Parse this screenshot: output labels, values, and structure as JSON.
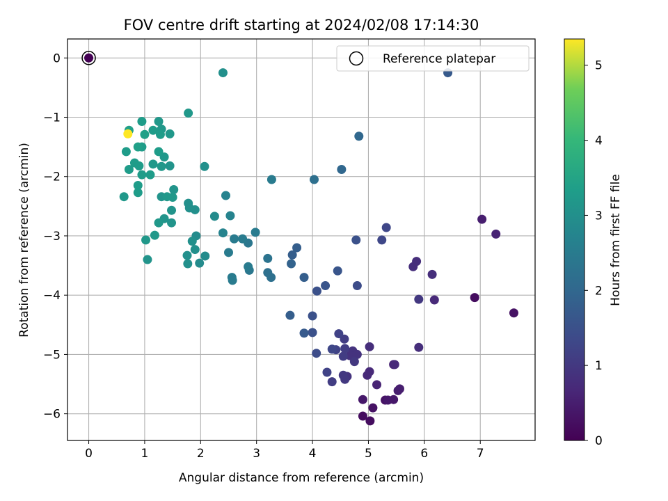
{
  "chart_data": {
    "type": "scatter",
    "title": "FOV centre drift starting at 2024/02/08 17:14:30",
    "xlabel": "Angular distance from reference (arcmin)",
    "ylabel": "Rotation from reference (arcmin)",
    "xlim": [
      -0.38,
      7.98
    ],
    "ylim": [
      -6.45,
      0.32
    ],
    "xticks": [
      "0",
      "1",
      "2",
      "3",
      "4",
      "5",
      "6",
      "7"
    ],
    "yticks": [
      "0",
      "−1",
      "−2",
      "−3",
      "−4",
      "−5",
      "−6"
    ],
    "grid": true,
    "legend": {
      "position": "top-right",
      "entries": [
        "Reference platepar"
      ]
    },
    "colorbar": {
      "label": "Hours from first FF file",
      "range": [
        0,
        5.35
      ],
      "ticks": [
        "0",
        "1",
        "2",
        "3",
        "4",
        "5"
      ],
      "colormap": "viridis"
    },
    "reference_point": {
      "x": 0,
      "y": 0
    },
    "points": [
      [
        2.4,
        -0.25,
        3.0
      ],
      [
        1.78,
        -0.93,
        3.2
      ],
      [
        6.42,
        -0.25,
        1.7
      ],
      [
        4.83,
        -1.32,
        2.0
      ],
      [
        0.72,
        -1.22,
        3.4
      ],
      [
        0.7,
        -1.28,
        5.35
      ],
      [
        0.95,
        -1.07,
        3.3
      ],
      [
        1.25,
        -1.07,
        3.2
      ],
      [
        1.3,
        -1.2,
        3.2
      ],
      [
        1.15,
        -1.22,
        3.3
      ],
      [
        1.0,
        -1.29,
        3.4
      ],
      [
        1.45,
        -1.28,
        3.2
      ],
      [
        1.28,
        -1.29,
        3.3
      ],
      [
        0.88,
        -1.5,
        3.4
      ],
      [
        0.95,
        -1.5,
        3.3
      ],
      [
        0.67,
        -1.58,
        3.3
      ],
      [
        1.25,
        -1.58,
        3.3
      ],
      [
        1.35,
        -1.67,
        3.2
      ],
      [
        0.82,
        -1.77,
        3.3
      ],
      [
        1.15,
        -1.79,
        3.2
      ],
      [
        1.3,
        -1.83,
        3.2
      ],
      [
        1.45,
        -1.82,
        3.1
      ],
      [
        0.9,
        -1.82,
        3.3
      ],
      [
        0.72,
        -1.88,
        3.3
      ],
      [
        0.95,
        -1.97,
        3.3
      ],
      [
        1.1,
        -1.97,
        3.3
      ],
      [
        2.07,
        -1.83,
        3.0
      ],
      [
        3.27,
        -2.05,
        2.5
      ],
      [
        4.03,
        -2.05,
        2.2
      ],
      [
        4.52,
        -1.88,
        2.0
      ],
      [
        0.88,
        -2.15,
        3.3
      ],
      [
        0.88,
        -2.27,
        3.3
      ],
      [
        0.63,
        -2.34,
        3.2
      ],
      [
        1.3,
        -2.34,
        3.1
      ],
      [
        1.4,
        -2.34,
        3.2
      ],
      [
        1.52,
        -2.22,
        3.1
      ],
      [
        1.5,
        -2.35,
        3.2
      ],
      [
        2.45,
        -2.32,
        2.7
      ],
      [
        1.78,
        -2.45,
        3.0
      ],
      [
        1.8,
        -2.53,
        3.0
      ],
      [
        1.9,
        -2.56,
        3.0
      ],
      [
        1.48,
        -2.57,
        3.1
      ],
      [
        2.25,
        -2.67,
        2.9
      ],
      [
        2.53,
        -2.66,
        2.7
      ],
      [
        1.25,
        -2.78,
        3.2
      ],
      [
        1.35,
        -2.71,
        3.1
      ],
      [
        1.48,
        -2.78,
        3.1
      ],
      [
        5.32,
        -2.86,
        1.3
      ],
      [
        2.4,
        -2.95,
        2.7
      ],
      [
        2.98,
        -2.94,
        2.5
      ],
      [
        1.18,
        -2.99,
        3.2
      ],
      [
        1.92,
        -3.0,
        2.9
      ],
      [
        1.02,
        -3.07,
        3.2
      ],
      [
        1.85,
        -3.09,
        3.0
      ],
      [
        2.6,
        -3.05,
        2.5
      ],
      [
        2.75,
        -3.05,
        2.5
      ],
      [
        2.85,
        -3.12,
        2.4
      ],
      [
        4.78,
        -3.07,
        1.5
      ],
      [
        5.24,
        -3.07,
        1.3
      ],
      [
        3.72,
        -3.2,
        1.8
      ],
      [
        1.9,
        -3.23,
        3.0
      ],
      [
        2.5,
        -3.28,
        2.5
      ],
      [
        3.2,
        -3.38,
        2.3
      ],
      [
        3.64,
        -3.32,
        1.8
      ],
      [
        1.76,
        -3.33,
        3.0
      ],
      [
        2.08,
        -3.34,
        2.9
      ],
      [
        1.05,
        -3.4,
        3.1
      ],
      [
        1.77,
        -3.47,
        3.0
      ],
      [
        1.98,
        -3.46,
        2.9
      ],
      [
        3.62,
        -3.47,
        1.9
      ],
      [
        2.85,
        -3.52,
        2.5
      ],
      [
        2.87,
        -3.58,
        2.4
      ],
      [
        3.2,
        -3.62,
        2.2
      ],
      [
        3.26,
        -3.7,
        2.2
      ],
      [
        4.45,
        -3.59,
        1.6
      ],
      [
        3.85,
        -3.7,
        1.8
      ],
      [
        2.56,
        -3.7,
        2.5
      ],
      [
        2.57,
        -3.75,
        2.5
      ],
      [
        5.86,
        -3.43,
        0.8
      ],
      [
        5.8,
        -3.52,
        0.8
      ],
      [
        6.14,
        -3.65,
        0.8
      ],
      [
        7.03,
        -2.72,
        0.5
      ],
      [
        7.28,
        -2.97,
        0.6
      ],
      [
        4.23,
        -3.84,
        1.6
      ],
      [
        4.08,
        -3.93,
        1.5
      ],
      [
        4.8,
        -3.84,
        1.4
      ],
      [
        5.9,
        -4.07,
        1.0
      ],
      [
        6.18,
        -4.08,
        0.7
      ],
      [
        6.9,
        -4.04,
        0.2
      ],
      [
        7.6,
        -4.3,
        0.3
      ],
      [
        3.6,
        -4.34,
        1.8
      ],
      [
        4.0,
        -4.35,
        1.5
      ],
      [
        3.85,
        -4.64,
        1.7
      ],
      [
        4.0,
        -4.63,
        1.5
      ],
      [
        4.47,
        -4.65,
        1.2
      ],
      [
        4.57,
        -4.74,
        1.1
      ],
      [
        4.07,
        -4.98,
        1.4
      ],
      [
        4.35,
        -4.91,
        1.3
      ],
      [
        4.42,
        -4.92,
        1.2
      ],
      [
        4.58,
        -4.9,
        1.1
      ],
      [
        4.72,
        -4.94,
        0.9
      ],
      [
        5.02,
        -4.87,
        0.8
      ],
      [
        5.9,
        -4.88,
        0.8
      ],
      [
        4.55,
        -5.03,
        1.1
      ],
      [
        4.67,
        -5.02,
        0.9
      ],
      [
        4.8,
        -5.0,
        0.9
      ],
      [
        4.75,
        -5.12,
        1.0
      ],
      [
        4.26,
        -5.3,
        1.2
      ],
      [
        4.35,
        -5.46,
        1.1
      ],
      [
        4.58,
        -5.42,
        1.0
      ],
      [
        4.55,
        -5.35,
        1.0
      ],
      [
        4.62,
        -5.37,
        0.9
      ],
      [
        4.98,
        -5.35,
        0.7
      ],
      [
        5.02,
        -5.29,
        0.7
      ],
      [
        5.15,
        -5.51,
        0.6
      ],
      [
        5.45,
        -5.17,
        0.6
      ],
      [
        5.47,
        -5.17,
        0.7
      ],
      [
        5.53,
        -5.61,
        0.5
      ],
      [
        5.56,
        -5.58,
        0.5
      ],
      [
        5.45,
        -5.76,
        0.4
      ],
      [
        5.3,
        -5.77,
        0.3
      ],
      [
        5.35,
        -5.77,
        0.4
      ],
      [
        4.9,
        -5.76,
        0.4
      ],
      [
        5.08,
        -5.9,
        0.3
      ],
      [
        4.9,
        -6.04,
        0.2
      ],
      [
        5.03,
        -6.12,
        0.2
      ]
    ]
  }
}
